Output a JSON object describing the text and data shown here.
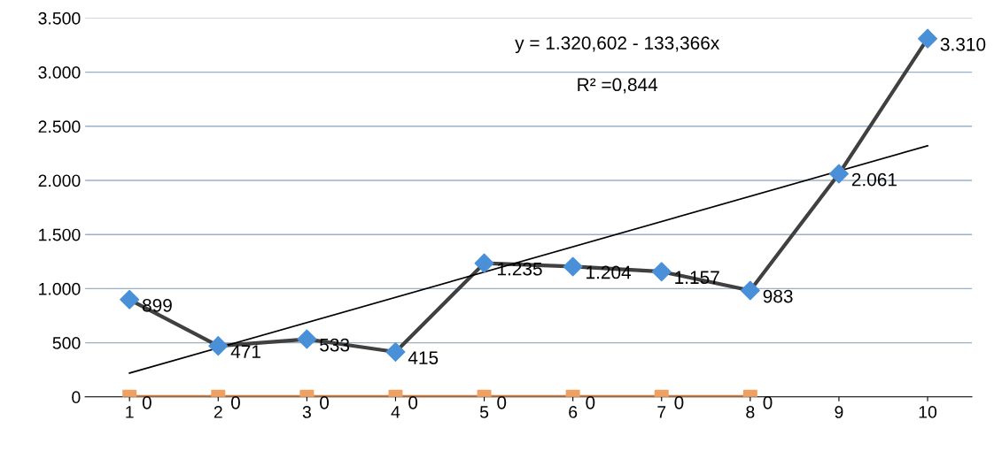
{
  "chart_data": {
    "type": "line",
    "categories": [
      "1",
      "2",
      "3",
      "4",
      "5",
      "6",
      "7",
      "8",
      "9",
      "10"
    ],
    "series": [
      {
        "color": "#404040",
        "colors": [
          "#4a90d9",
          "#4a90d9",
          "#4a90d9",
          "#4a90d9",
          "#4a90d9",
          "#4a90d9",
          "#4a90d9",
          "#4a90d9",
          "#4a90d9",
          "#4a90d9"
        ],
        "marker": "diamond",
        "values": [
          899,
          471,
          533,
          415,
          1235,
          1204,
          1157,
          983,
          2061,
          3310
        ],
        "value_labels": [
          "899",
          "471",
          "533",
          "415",
          "1.235",
          "1.204",
          "1.157",
          "983",
          "2.061",
          "3.310"
        ]
      },
      {
        "color": "#c8783c",
        "colors": [
          "#f0a060",
          "#f0a060",
          "#f0a060",
          "#f0a060",
          "#f0a060",
          "#f0a060",
          "#f0a060",
          "#f0a060",
          "#f0a060",
          "#f0a060"
        ],
        "marker": "square",
        "values": [
          0,
          0,
          0,
          0,
          0,
          0,
          0,
          0,
          null,
          null
        ],
        "value_labels": [
          "0",
          "0",
          "0",
          "0",
          "0",
          "0",
          "0",
          "0",
          null,
          null
        ]
      },
      {
        "type": "line",
        "color": "#000000",
        "marker": "none",
        "x": [
          "1",
          "10"
        ],
        "values": [
          220,
          2320
        ]
      }
    ],
    "ylim": [
      0,
      3500
    ],
    "yticks": [
      0,
      500,
      {
        "value": 1000,
        "label": "1.000"
      },
      {
        "value": 1500,
        "label": "1.500"
      },
      {
        "value": 2000,
        "label": "2.000"
      },
      {
        "value": 2500,
        "label": "2.500"
      },
      {
        "value": 3000,
        "label": "3.000"
      },
      {
        "value": 3500,
        "label": "3.500"
      }
    ],
    "grid": "y",
    "annotations": [
      "y = 1.320,602 - 133,366x",
      "R² =0,844"
    ]
  }
}
